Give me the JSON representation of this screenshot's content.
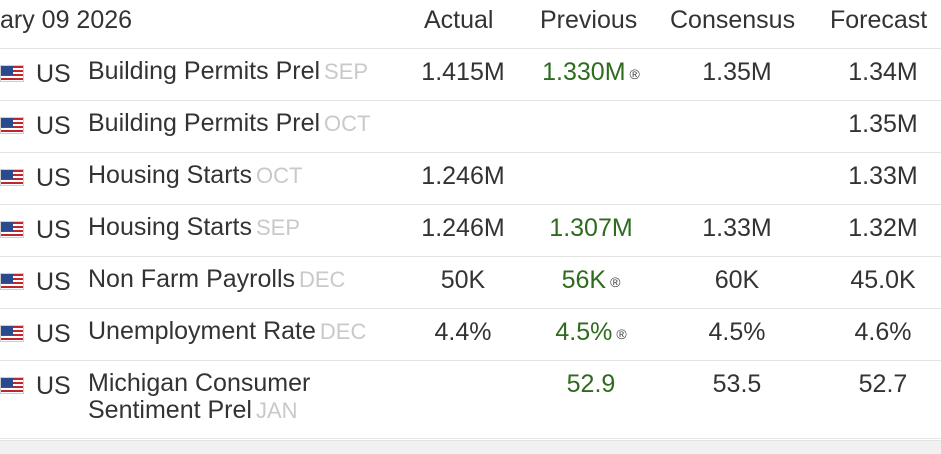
{
  "header": {
    "date": "ary 09 2026",
    "actual": "Actual",
    "previous": "Previous",
    "consensus": "Consensus",
    "forecast": "Forecast"
  },
  "revised_mark": "®",
  "rows": [
    {
      "country": "US",
      "event": "Building Permits Prel",
      "period": "SEP",
      "actual": "1.415M",
      "previous": "1.330M",
      "previous_revised": true,
      "consensus": "1.35M",
      "forecast": "1.34M"
    },
    {
      "country": "US",
      "event": "Building Permits Prel",
      "period": "OCT",
      "actual": "",
      "previous": "",
      "previous_revised": false,
      "consensus": "",
      "forecast": "1.35M"
    },
    {
      "country": "US",
      "event": "Housing Starts",
      "period": "OCT",
      "actual": "1.246M",
      "previous": "",
      "previous_revised": false,
      "consensus": "",
      "forecast": "1.33M"
    },
    {
      "country": "US",
      "event": "Housing Starts",
      "period": "SEP",
      "actual": "1.246M",
      "previous": "1.307M",
      "previous_revised": false,
      "consensus": "1.33M",
      "forecast": "1.32M"
    },
    {
      "country": "US",
      "event": "Non Farm Payrolls",
      "period": "DEC",
      "actual": "50K",
      "previous": "56K",
      "previous_revised": true,
      "consensus": "60K",
      "forecast": "45.0K"
    },
    {
      "country": "US",
      "event": "Unemployment Rate",
      "period": "DEC",
      "actual": "4.4%",
      "previous": "4.5%",
      "previous_revised": true,
      "consensus": "4.5%",
      "forecast": "4.6%"
    },
    {
      "country": "US",
      "event_line1": "Michigan Consumer",
      "event_line2": "Sentiment Prel",
      "period": "JAN",
      "actual": "",
      "previous": "52.9",
      "previous_revised": false,
      "consensus": "53.5",
      "forecast": "52.7"
    }
  ],
  "colors": {
    "previous_value": "#2e6b1f",
    "period": "#c9c9c9",
    "flag_red": "#c0272d",
    "flag_blue": "#2b4a8b"
  }
}
